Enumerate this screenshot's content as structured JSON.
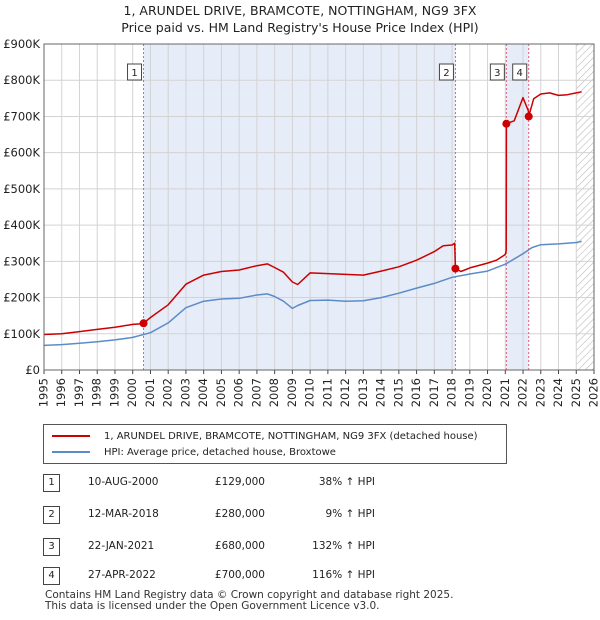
{
  "title_line1": "1, ARUNDEL DRIVE, BRAMCOTE, NOTTINGHAM, NG9 3FX",
  "title_line2": "Price paid vs. HM Land Registry's House Price Index (HPI)",
  "legend": {
    "property": "1, ARUNDEL DRIVE, BRAMCOTE, NOTTINGHAM, NG9 3FX (detached house)",
    "hpi": "HPI: Average price, detached house, Broxtowe"
  },
  "colors": {
    "property": "#cc0000",
    "hpi": "#5b8cc8",
    "shade": "#e6ecf8",
    "grid": "#d3d3d3"
  },
  "transactions": [
    {
      "id": "1",
      "date": "10-AUG-2000",
      "price": "£129,000",
      "pct": "38% ↑ HPI"
    },
    {
      "id": "2",
      "date": "12-MAR-2018",
      "price": "£280,000",
      "pct": "9% ↑ HPI"
    },
    {
      "id": "3",
      "date": "22-JAN-2021",
      "price": "£680,000",
      "pct": "132% ↑ HPI"
    },
    {
      "id": "4",
      "date": "27-APR-2022",
      "price": "£700,000",
      "pct": "116% ↑ HPI"
    }
  ],
  "footer": {
    "line1": "Contains HM Land Registry data © Crown copyright and database right 2025.",
    "line2": "This data is licensed under the Open Government Licence v3.0."
  },
  "chart_data": {
    "type": "line",
    "title": "1, ARUNDEL DRIVE, BRAMCOTE, NOTTINGHAM, NG9 3FX — Price paid vs. HM Land Registry's House Price Index (HPI)",
    "xlim": [
      1995,
      2026
    ],
    "ylim": [
      0,
      900000
    ],
    "x_ticks": [
      1995,
      1996,
      1997,
      1998,
      1999,
      2000,
      2001,
      2002,
      2003,
      2004,
      2005,
      2006,
      2007,
      2008,
      2009,
      2010,
      2011,
      2012,
      2013,
      2014,
      2015,
      2016,
      2017,
      2018,
      2019,
      2020,
      2021,
      2022,
      2023,
      2024,
      2025,
      2026
    ],
    "y_ticks": [
      {
        "value": 0,
        "label": "£0"
      },
      {
        "value": 100000,
        "label": "£100K"
      },
      {
        "value": 200000,
        "label": "£200K"
      },
      {
        "value": 300000,
        "label": "£300K"
      },
      {
        "value": 400000,
        "label": "£400K"
      },
      {
        "value": 500000,
        "label": "£500K"
      },
      {
        "value": 600000,
        "label": "£600K"
      },
      {
        "value": 700000,
        "label": "£700K"
      },
      {
        "value": 800000,
        "label": "£800K"
      },
      {
        "value": 900000,
        "label": "£900K"
      }
    ],
    "shaded_ranges": [
      [
        2000.61,
        2018.19
      ],
      [
        2021.06,
        2022.32
      ]
    ],
    "hatched_from": 2025.0,
    "series": [
      {
        "name": "1, ARUNDEL DRIVE, BRAMCOTE, NOTTINGHAM, NG9 3FX (detached house)",
        "color": "#cc0000",
        "x": [
          1995.0,
          1996.0,
          1997.0,
          1998.0,
          1999.0,
          2000.0,
          2000.6,
          2000.61,
          2001.0,
          2002.0,
          2003.0,
          2004.0,
          2005.0,
          2006.0,
          2007.0,
          2007.6,
          2008.0,
          2008.5,
          2009.0,
          2009.3,
          2010.0,
          2011.0,
          2012.0,
          2013.0,
          2014.0,
          2015.0,
          2016.0,
          2017.0,
          2017.5,
          2018.0,
          2018.15,
          2018.19,
          2018.5,
          2019.0,
          2020.0,
          2020.5,
          2021.0,
          2021.05,
          2021.06,
          2021.5,
          2022.0,
          2022.3,
          2022.32,
          2022.6,
          2023.0,
          2023.5,
          2024.0,
          2024.5,
          2025.0,
          2025.3
        ],
        "y": [
          98000,
          100000,
          106000,
          112000,
          118000,
          126000,
          128000,
          129000,
          145000,
          180000,
          237000,
          262000,
          272000,
          276000,
          288000,
          293000,
          283000,
          270000,
          243000,
          236000,
          268000,
          266000,
          264000,
          262000,
          273000,
          285000,
          303000,
          327000,
          343000,
          345000,
          350000,
          280000,
          272000,
          282000,
          295000,
          303000,
          319000,
          330000,
          680000,
          688000,
          752000,
          715000,
          700000,
          749000,
          762000,
          765000,
          758000,
          760000,
          765000,
          768000
        ]
      },
      {
        "name": "HPI: Average price, detached house, Broxtowe",
        "color": "#5b8cc8",
        "x": [
          1995.0,
          1996.0,
          1997.0,
          1998.0,
          1999.0,
          2000.0,
          2001.0,
          2002.0,
          2003.0,
          2004.0,
          2005.0,
          2006.0,
          2007.0,
          2007.6,
          2008.0,
          2008.5,
          2009.0,
          2009.3,
          2010.0,
          2011.0,
          2012.0,
          2013.0,
          2014.0,
          2015.0,
          2016.0,
          2017.0,
          2018.0,
          2019.0,
          2020.0,
          2021.0,
          2022.0,
          2022.5,
          2023.0,
          2024.0,
          2025.0,
          2025.3
        ],
        "y": [
          68000,
          70000,
          74000,
          78000,
          83000,
          90000,
          103000,
          130000,
          172000,
          190000,
          196000,
          198000,
          207000,
          210000,
          203000,
          190000,
          170000,
          178000,
          192000,
          193000,
          190000,
          191000,
          200000,
          212000,
          226000,
          239000,
          256000,
          265000,
          273000,
          292000,
          321000,
          338000,
          346000,
          348000,
          352000,
          355000
        ]
      }
    ],
    "sale_points": [
      {
        "label": "1",
        "x": 2000.61,
        "y": 129000
      },
      {
        "label": "2",
        "x": 2018.19,
        "y": 280000
      },
      {
        "label": "3",
        "x": 2021.06,
        "y": 680000
      },
      {
        "label": "4",
        "x": 2022.32,
        "y": 700000
      }
    ]
  }
}
